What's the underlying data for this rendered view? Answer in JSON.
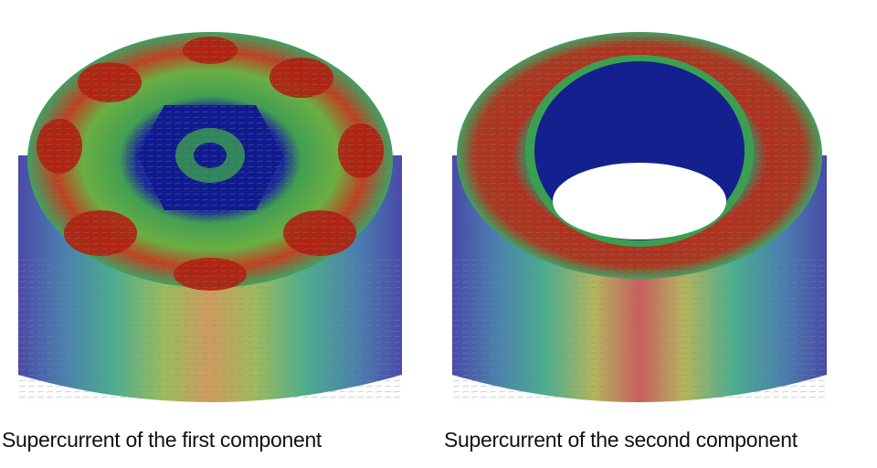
{
  "figure": {
    "panels": [
      {
        "caption": "Supercurrent of the first component"
      },
      {
        "caption": "Supercurrent of the second component"
      }
    ],
    "colors": {
      "low": "#1a2a9a",
      "mid_low": "#2a9a6a",
      "mid": "#3aa83a",
      "mid_high": "#c8b040",
      "high": "#b02010",
      "arrows": "#8a8a8a"
    }
  }
}
